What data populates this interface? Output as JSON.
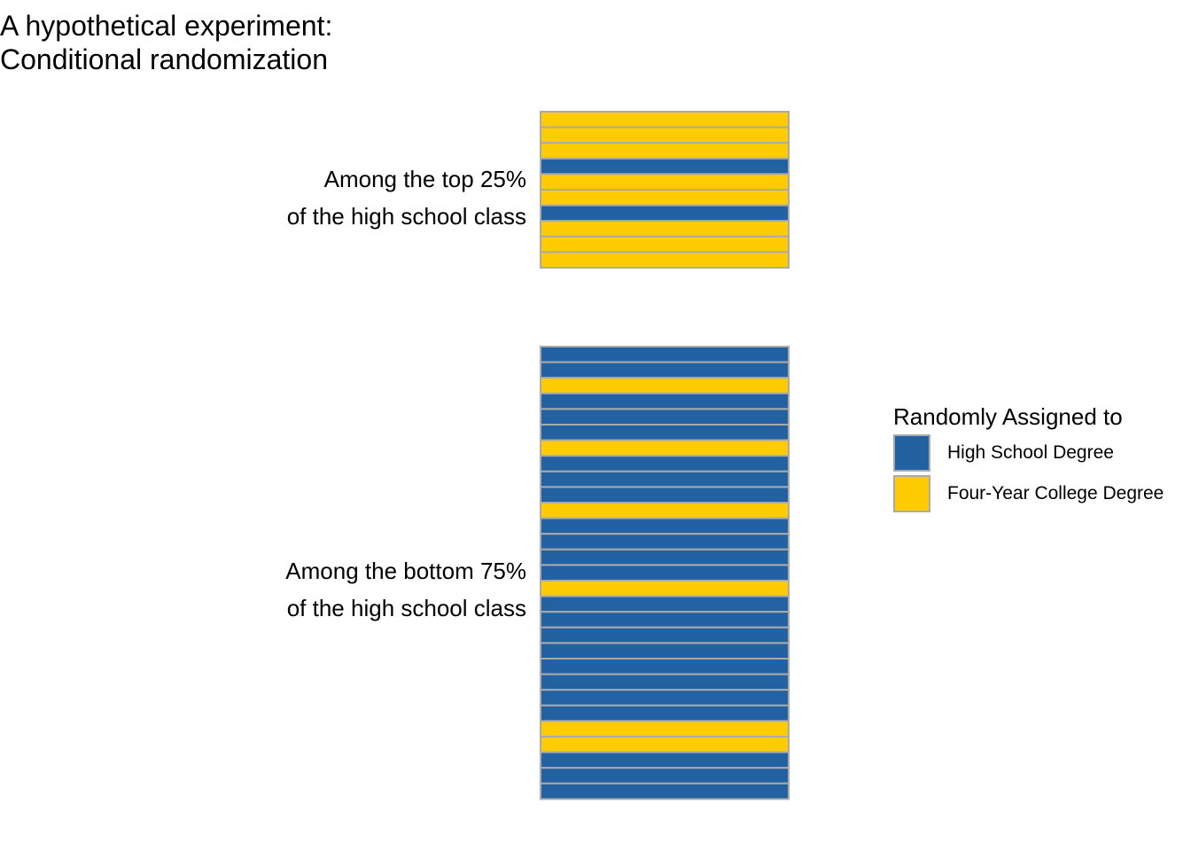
{
  "chart_data": {
    "type": "bar",
    "title": [
      "A hypothetical experiment:",
      "Conditional randomization"
    ],
    "legend": {
      "title": "Randomly Assigned to",
      "placement": "right",
      "entries": [
        {
          "key": "HS",
          "label": "High School Degree",
          "color": "#2362A2"
        },
        {
          "key": "CO",
          "label": "Four-Year College Degree",
          "color": "#FFCC02"
        }
      ]
    },
    "groups": [
      {
        "label_lines": [
          "Among the top 25%",
          "of the high school class"
        ],
        "assignments": [
          "CO",
          "CO",
          "CO",
          "HS",
          "CO",
          "CO",
          "HS",
          "CO",
          "CO",
          "CO"
        ]
      },
      {
        "label_lines": [
          "Among the bottom 75%",
          "of the high school class"
        ],
        "assignments": [
          "HS",
          "HS",
          "CO",
          "HS",
          "HS",
          "HS",
          "CO",
          "HS",
          "HS",
          "HS",
          "CO",
          "HS",
          "HS",
          "HS",
          "HS",
          "CO",
          "HS",
          "HS",
          "HS",
          "HS",
          "HS",
          "HS",
          "HS",
          "HS",
          "CO",
          "CO",
          "HS",
          "HS",
          "HS"
        ]
      }
    ],
    "cell_border_color": "#AAAAAA"
  }
}
